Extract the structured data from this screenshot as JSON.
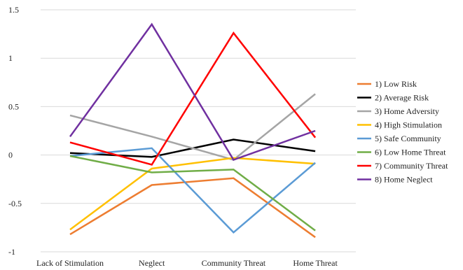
{
  "chart_data": {
    "type": "line",
    "title": "",
    "xlabel": "",
    "ylabel": "",
    "categories": [
      "Lack of Stimulation",
      "Neglect",
      "Community Threat",
      "Home Threat"
    ],
    "ylim": [
      -1,
      1.5
    ],
    "yticks": [
      1.5,
      1,
      0.5,
      0,
      -0.5,
      -1
    ],
    "ytick_labels": [
      "1.5",
      "1",
      "0.5",
      "0",
      "-0.5",
      "-1"
    ],
    "grid": true,
    "legend_position": "right",
    "series": [
      {
        "name": "1) Low Risk",
        "color": "#ed7d31",
        "values": [
          -0.82,
          -0.31,
          -0.24,
          -0.85
        ]
      },
      {
        "name": "2) Average Risk",
        "color": "#000000",
        "values": [
          0.02,
          -0.02,
          0.16,
          0.04
        ]
      },
      {
        "name": "3) Home Adversity",
        "color": "#a5a5a5",
        "values": [
          0.41,
          0.19,
          -0.05,
          0.63
        ]
      },
      {
        "name": "4) High Stimulation",
        "color": "#ffc000",
        "values": [
          -0.77,
          -0.14,
          -0.03,
          -0.09
        ]
      },
      {
        "name": "5) Safe Community",
        "color": "#5b9bd5",
        "values": [
          -0.01,
          0.07,
          -0.8,
          -0.08
        ]
      },
      {
        "name": "6) Low Home Threat",
        "color": "#70ad47",
        "values": [
          -0.01,
          -0.18,
          -0.15,
          -0.78
        ]
      },
      {
        "name": "7) Community Threat",
        "color": "#ff0000",
        "values": [
          0.13,
          -0.1,
          1.26,
          0.18
        ]
      },
      {
        "name": "8) Home Neglect",
        "color": "#7030a0",
        "values": [
          0.19,
          1.35,
          -0.05,
          0.25
        ]
      }
    ]
  }
}
